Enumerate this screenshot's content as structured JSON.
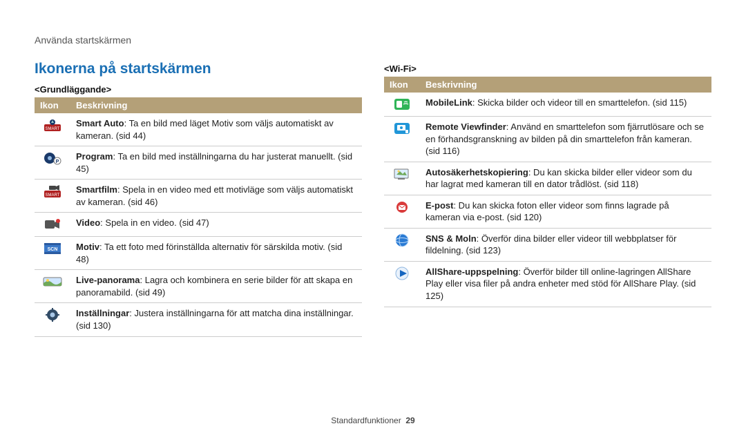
{
  "header": {
    "breadcrumb": "Använda startskärmen",
    "title": "Ikonerna på startskärmen",
    "title_color": "#1a6fb4"
  },
  "table_header": {
    "bg": "#b4a078",
    "cols": [
      "Ikon",
      "Beskrivning"
    ]
  },
  "left": {
    "subhead": "<Grundläggande>",
    "rows": [
      {
        "icon": "smart-auto",
        "term": "Smart Auto",
        "desc": ": Ta en bild med läget Motiv som väljs automatiskt av kameran. (sid 44)"
      },
      {
        "icon": "program",
        "term": "Program",
        "desc": ": Ta en bild med inställningarna du har justerat manuellt. (sid 45)"
      },
      {
        "icon": "smartfilm",
        "term": "Smartfilm",
        "desc": ": Spela in en video med ett motivläge som väljs automatiskt av kameran. (sid 46)"
      },
      {
        "icon": "video",
        "term": "Video",
        "desc": ": Spela in en video. (sid 47)"
      },
      {
        "icon": "motiv",
        "term": "Motiv",
        "desc": ": Ta ett foto med förinställda alternativ för särskilda motiv. (sid 48)"
      },
      {
        "icon": "livepano",
        "term": "Live-panorama",
        "desc": ": Lagra och kombinera en serie bilder för att skapa en panoramabild. (sid 49)"
      },
      {
        "icon": "settings",
        "term": "Inställningar",
        "desc": ": Justera inställningarna för att matcha dina inställningar. (sid 130)"
      }
    ]
  },
  "right": {
    "subhead": "<Wi-Fi>",
    "rows": [
      {
        "icon": "mobilelink",
        "term": "MobileLink",
        "desc": ": Skicka bilder och videor till en smarttelefon. (sid 115)"
      },
      {
        "icon": "remoteview",
        "term": "Remote Viewfinder",
        "desc": ": Använd en smarttelefon som fjärrutlösare och se en förhandsgranskning av bilden på din smarttelefon från kameran. (sid 116)"
      },
      {
        "icon": "autobackup",
        "term": "Autosäkerhetskopiering",
        "desc": ": Du kan skicka bilder eller videor som du har lagrat med kameran till en dator trådlöst. (sid 118)"
      },
      {
        "icon": "epost",
        "term": "E-post",
        "desc": ": Du kan skicka foton eller videor som finns lagrade på kameran via e-post. (sid 120)"
      },
      {
        "icon": "snsmoln",
        "term": "SNS & Moln",
        "desc": ": Överför dina bilder eller videor till webbplatser för fildelning. (sid 123)"
      },
      {
        "icon": "allshare",
        "term": "AllShare-uppspelning",
        "desc": ": Överför bilder till online-lagringen AllShare Play eller visa filer på andra enheter med stöd för AllShare Play. (sid 125)"
      }
    ]
  },
  "icon_colors": {
    "smart-auto": {
      "bg": "#b02020"
    },
    "program": {
      "bg": "#1a3a6a"
    },
    "smartfilm": {
      "bg": "#b02020"
    },
    "video": {
      "bg": "#e8e4da"
    },
    "motiv": {
      "bg": "#3a78c8"
    },
    "livepano": {
      "bg": "#ffffff"
    },
    "settings": {
      "bg": "#ffffff"
    },
    "mobilelink": {
      "bg": "#2fb457"
    },
    "remoteview": {
      "bg": "#2196d8"
    },
    "autobackup": {
      "bg": "#ffffff"
    },
    "epost": {
      "bg": "#ffffff"
    },
    "snsmoln": {
      "bg": "#ffffff"
    },
    "allshare": {
      "bg": "#ffffff"
    }
  },
  "footer": {
    "label": "Standardfunktioner",
    "page": "29"
  }
}
